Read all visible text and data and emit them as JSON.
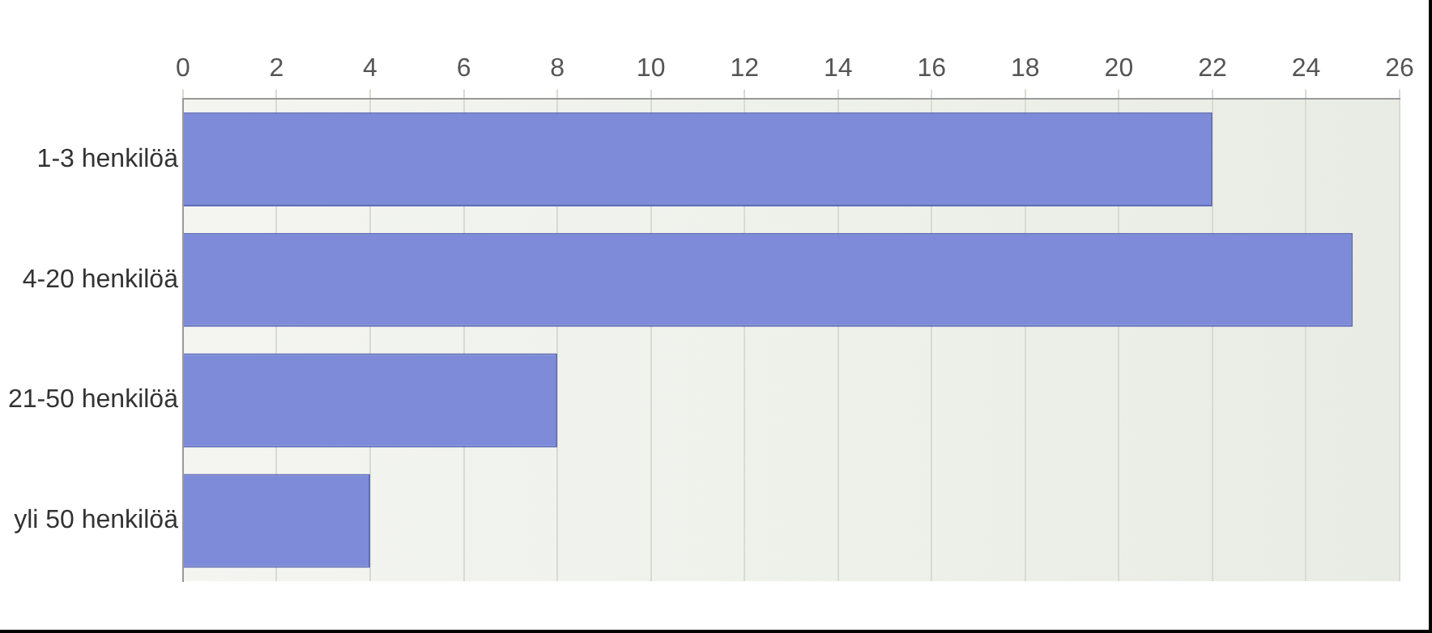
{
  "chart_data": {
    "type": "bar",
    "orientation": "horizontal",
    "categories": [
      "1-3 henkilöä",
      "4-20 henkilöä",
      "21-50 henkilöä",
      "yli 50 henkilöä"
    ],
    "values": [
      22,
      25,
      8,
      4
    ],
    "color": "#7d8bd9",
    "xlim": [
      0,
      26
    ],
    "xticks": [
      0,
      2,
      4,
      6,
      8,
      10,
      12,
      14,
      16,
      18,
      20,
      22,
      24,
      26
    ],
    "grid": "x",
    "legend": false
  }
}
